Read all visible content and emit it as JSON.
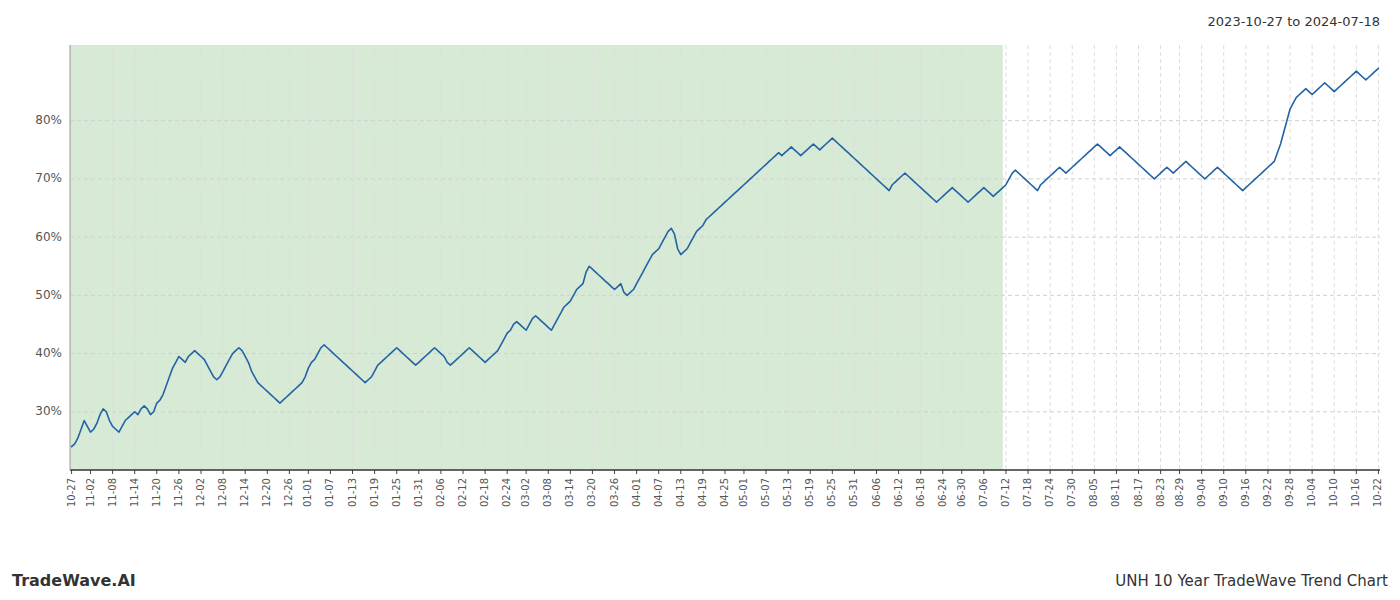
{
  "chart_data": {
    "type": "line",
    "title": "UNH 10 Year TradeWave Trend Chart",
    "subtitle": "2023-10-27 to 2024-07-18",
    "annotations": [
      "TradeWave.AI"
    ],
    "color": "#2464a4",
    "grid": true,
    "ylim": [
      20,
      93
    ],
    "yticks": [
      {
        "value": 30,
        "label": "30%"
      },
      {
        "value": 40,
        "label": "40%"
      },
      {
        "value": 50,
        "label": "50%"
      },
      {
        "value": 60,
        "label": "60%"
      },
      {
        "value": 70,
        "label": "70%"
      },
      {
        "value": 80,
        "label": "80%"
      }
    ],
    "shaded_region": {
      "start": 0,
      "end": 295,
      "color": "#d6ead6"
    },
    "categories": [
      "10-27",
      null,
      null,
      null,
      null,
      null,
      "11-02",
      null,
      null,
      null,
      null,
      null,
      null,
      "11-08",
      null,
      null,
      null,
      null,
      null,
      null,
      "11-14",
      null,
      null,
      null,
      null,
      null,
      null,
      "11-20",
      null,
      null,
      null,
      null,
      null,
      null,
      "11-26",
      null,
      null,
      null,
      null,
      null,
      null,
      "12-02",
      null,
      null,
      null,
      null,
      null,
      null,
      "12-08",
      null,
      null,
      null,
      null,
      null,
      null,
      "12-14",
      null,
      null,
      null,
      null,
      null,
      null,
      "12-20",
      null,
      null,
      null,
      null,
      null,
      null,
      "12-26",
      null,
      null,
      null,
      null,
      null,
      "01-01",
      null,
      null,
      null,
      null,
      null,
      null,
      "01-07",
      null,
      null,
      null,
      null,
      null,
      null,
      "01-13",
      null,
      null,
      null,
      null,
      null,
      null,
      "01-19",
      null,
      null,
      null,
      null,
      null,
      null,
      "01-25",
      null,
      null,
      null,
      null,
      null,
      null,
      "01-31",
      null,
      null,
      null,
      null,
      null,
      null,
      "02-06",
      null,
      null,
      null,
      null,
      null,
      null,
      "02-12",
      null,
      null,
      null,
      null,
      null,
      null,
      "02-18",
      null,
      null,
      null,
      null,
      null,
      null,
      "02-24",
      null,
      null,
      null,
      null,
      null,
      "03-02",
      null,
      null,
      null,
      null,
      null,
      null,
      "03-08",
      null,
      null,
      null,
      null,
      null,
      null,
      "03-14",
      null,
      null,
      null,
      null,
      null,
      null,
      "03-20",
      null,
      null,
      null,
      null,
      null,
      null,
      "03-26",
      null,
      null,
      null,
      null,
      null,
      null,
      "04-01",
      null,
      null,
      null,
      null,
      null,
      null,
      "04-07",
      null,
      null,
      null,
      null,
      null,
      null,
      "04-13",
      null,
      null,
      null,
      null,
      null,
      null,
      "04-19",
      null,
      null,
      null,
      null,
      null,
      null,
      "04-25",
      null,
      null,
      null,
      null,
      null,
      "05-01",
      null,
      null,
      null,
      null,
      null,
      null,
      "05-07",
      null,
      null,
      null,
      null,
      null,
      null,
      "05-13",
      null,
      null,
      null,
      null,
      null,
      null,
      "05-19",
      null,
      null,
      null,
      null,
      null,
      null,
      "05-25",
      null,
      null,
      null,
      null,
      null,
      null,
      "05-31",
      null,
      null,
      null,
      null,
      null,
      null,
      "06-06",
      null,
      null,
      null,
      null,
      null,
      null,
      "06-12",
      null,
      null,
      null,
      null,
      null,
      null,
      "06-18",
      null,
      null,
      null,
      null,
      null,
      null,
      "06-24",
      null,
      null,
      null,
      null,
      null,
      "06-30",
      null,
      null,
      null,
      null,
      null,
      null,
      "07-06",
      null,
      null,
      null,
      null,
      null,
      null,
      "07-12",
      null,
      null,
      null,
      null,
      null,
      null,
      "07-18",
      null,
      null,
      null,
      null,
      null,
      null,
      "07-24",
      null,
      null,
      null,
      null,
      null,
      null,
      "07-30",
      null,
      null,
      null,
      null,
      null,
      null,
      "08-05",
      null,
      null,
      null,
      null,
      null,
      null,
      "08-11",
      null,
      null,
      null,
      null,
      null,
      null,
      "08-17",
      null,
      null,
      null,
      null,
      null,
      null,
      "08-23",
      null,
      null,
      null,
      null,
      null,
      "08-29",
      null,
      null,
      null,
      null,
      null,
      null,
      "09-04",
      null,
      null,
      null,
      null,
      null,
      null,
      "09-10",
      null,
      null,
      null,
      null,
      null,
      null,
      "09-16",
      null,
      null,
      null,
      null,
      null,
      null,
      "09-22",
      null,
      null,
      null,
      null,
      null,
      null,
      "09-28",
      null,
      null,
      null,
      null,
      null,
      null,
      "10-04",
      null,
      null,
      null,
      null,
      null,
      null,
      "10-10",
      null,
      null,
      null,
      null,
      null,
      null,
      "10-16",
      null,
      null,
      null,
      null,
      null,
      null,
      "10-22"
    ],
    "values": [
      24.0,
      24.5,
      25.5,
      27.0,
      28.5,
      27.5,
      26.5,
      27.0,
      28.0,
      29.5,
      30.5,
      30.0,
      28.5,
      27.5,
      27.0,
      26.5,
      27.5,
      28.5,
      29.0,
      29.5,
      30.0,
      29.5,
      30.5,
      31.0,
      30.5,
      29.5,
      30.0,
      31.5,
      32.0,
      33.0,
      34.5,
      36.0,
      37.5,
      38.5,
      39.5,
      39.0,
      38.5,
      39.5,
      40.0,
      40.5,
      40.0,
      39.5,
      39.0,
      38.0,
      37.0,
      36.0,
      35.5,
      36.0,
      37.0,
      38.0,
      39.0,
      40.0,
      40.5,
      41.0,
      40.5,
      39.5,
      38.5,
      37.0,
      36.0,
      35.0,
      34.5,
      34.0,
      33.5,
      33.0,
      32.5,
      32.0,
      31.5,
      32.0,
      32.5,
      33.0,
      33.5,
      34.0,
      34.5,
      35.0,
      36.0,
      37.5,
      38.5,
      39.0,
      40.0,
      41.0,
      41.5,
      41.0,
      40.5,
      40.0,
      39.5,
      39.0,
      38.5,
      38.0,
      37.5,
      37.0,
      36.5,
      36.0,
      35.5,
      35.0,
      35.5,
      36.0,
      37.0,
      38.0,
      38.5,
      39.0,
      39.5,
      40.0,
      40.5,
      41.0,
      40.5,
      40.0,
      39.5,
      39.0,
      38.5,
      38.0,
      38.5,
      39.0,
      39.5,
      40.0,
      40.5,
      41.0,
      40.5,
      40.0,
      39.5,
      38.5,
      38.0,
      38.5,
      39.0,
      39.5,
      40.0,
      40.5,
      41.0,
      40.5,
      40.0,
      39.5,
      39.0,
      38.5,
      39.0,
      39.5,
      40.0,
      40.5,
      41.5,
      42.5,
      43.5,
      44.0,
      45.0,
      45.5,
      45.0,
      44.5,
      44.0,
      45.0,
      46.0,
      46.5,
      46.0,
      45.5,
      45.0,
      44.5,
      44.0,
      45.0,
      46.0,
      47.0,
      48.0,
      48.5,
      49.0,
      50.0,
      51.0,
      51.5,
      52.0,
      54.0,
      55.0,
      54.5,
      54.0,
      53.5,
      53.0,
      52.5,
      52.0,
      51.5,
      51.0,
      51.5,
      52.0,
      50.5,
      50.0,
      50.5,
      51.0,
      52.0,
      53.0,
      54.0,
      55.0,
      56.0,
      57.0,
      57.5,
      58.0,
      59.0,
      60.0,
      61.0,
      61.5,
      60.5,
      58.0,
      57.0,
      57.5,
      58.0,
      59.0,
      60.0,
      61.0,
      61.5,
      62.0,
      63.0,
      63.5,
      64.0,
      64.5,
      65.0,
      65.5,
      66.0,
      66.5,
      67.0,
      67.5,
      68.0,
      68.5,
      69.0,
      69.5,
      70.0,
      70.5,
      71.0,
      71.5,
      72.0,
      72.5,
      73.0,
      73.5,
      74.0,
      74.5,
      74.0,
      74.5,
      75.0,
      75.5,
      75.0,
      74.5,
      74.0,
      74.5,
      75.0,
      75.5,
      76.0,
      75.5,
      75.0,
      75.5,
      76.0,
      76.5,
      77.0,
      76.5,
      76.0,
      75.5,
      75.0,
      74.5,
      74.0,
      73.5,
      73.0,
      72.5,
      72.0,
      71.5,
      71.0,
      70.5,
      70.0,
      69.5,
      69.0,
      68.5,
      68.0,
      69.0,
      69.5,
      70.0,
      70.5,
      71.0,
      70.5,
      70.0,
      69.5,
      69.0,
      68.5,
      68.0,
      67.5,
      67.0,
      66.5,
      66.0,
      66.5,
      67.0,
      67.5,
      68.0,
      68.5,
      68.0,
      67.5,
      67.0,
      66.5,
      66.0,
      66.5,
      67.0,
      67.5,
      68.0,
      68.5,
      68.0,
      67.5,
      67.0,
      67.5,
      68.0,
      68.5,
      69.0,
      70.0,
      71.0,
      71.5,
      71.0,
      70.5,
      70.0,
      69.5,
      69.0,
      68.5,
      68.0,
      69.0,
      69.5,
      70.0,
      70.5,
      71.0,
      71.5,
      72.0,
      71.5,
      71.0,
      71.5,
      72.0,
      72.5,
      73.0,
      73.5,
      74.0,
      74.5,
      75.0,
      75.5,
      76.0,
      75.5,
      75.0,
      74.5,
      74.0,
      74.5,
      75.0,
      75.5,
      75.0,
      74.5,
      74.0,
      73.5,
      73.0,
      72.5,
      72.0,
      71.5,
      71.0,
      70.5,
      70.0,
      70.5,
      71.0,
      71.5,
      72.0,
      71.5,
      71.0,
      71.5,
      72.0,
      72.5,
      73.0,
      72.5,
      72.0,
      71.5,
      71.0,
      70.5,
      70.0,
      70.5,
      71.0,
      71.5,
      72.0,
      71.5,
      71.0,
      70.5,
      70.0,
      69.5,
      69.0,
      68.5,
      68.0,
      68.5,
      69.0,
      69.5,
      70.0,
      70.5,
      71.0,
      71.5,
      72.0,
      72.5,
      73.0,
      74.5,
      76.0,
      78.0,
      80.0,
      82.0,
      83.0,
      84.0,
      84.5,
      85.0,
      85.5,
      85.0,
      84.5,
      85.0,
      85.5,
      86.0,
      86.5,
      86.0,
      85.5,
      85.0,
      85.5,
      86.0,
      86.5,
      87.0,
      87.5,
      88.0,
      88.5,
      88.0,
      87.5,
      87.0,
      87.5,
      88.0,
      88.5,
      89.0
    ]
  }
}
